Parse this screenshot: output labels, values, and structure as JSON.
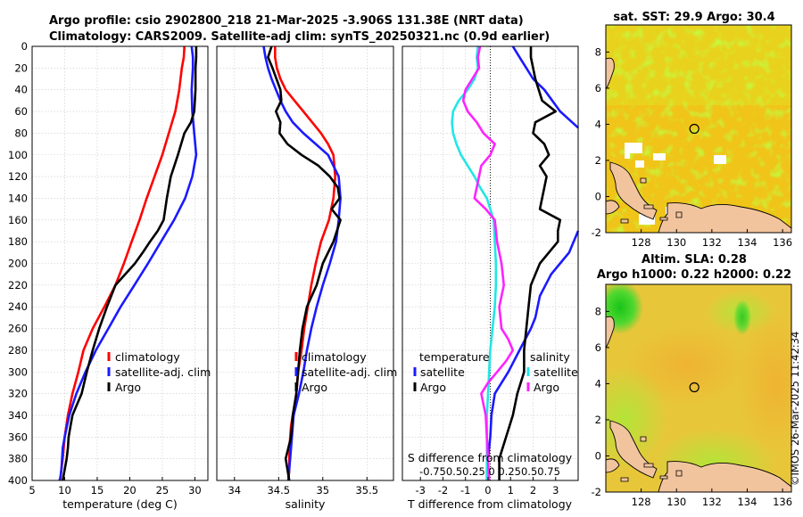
{
  "header": {
    "line1": "Argo profile: csio 2902800_218 21-Mar-2025 -3.906S 131.38E (NRT data)",
    "line2": "Climatology: CARS2009. Satellite-adj clim: synTS_20250321.nc (0.9d earlier)"
  },
  "watermark": "©IMOS 26-Mar-2025 11:42:34",
  "colors": {
    "climatology": "#ff0000",
    "satellite": "#1a1aff",
    "argo": "#000000",
    "s_satellite": "#22e6e6",
    "s_argo": "#ff22ff",
    "land": "#f2c49e",
    "grid": "#c8c8c8"
  },
  "chart_data": [
    {
      "id": "temperature",
      "type": "line",
      "xlabel": "temperature (deg C)",
      "ylabel": "",
      "xlim": [
        5,
        32
      ],
      "ylim": [
        400,
        0
      ],
      "xticks": [
        5,
        10,
        15,
        20,
        25,
        30
      ],
      "yticks": [
        0,
        20,
        40,
        60,
        80,
        100,
        120,
        140,
        160,
        180,
        200,
        220,
        240,
        260,
        280,
        300,
        320,
        340,
        360,
        380,
        400
      ],
      "legend": [
        "climatology",
        "satellite-adj. clim",
        "Argo"
      ],
      "legend_position": "lower-right",
      "series": [
        {
          "name": "climatology",
          "color": "climatology",
          "x": [
            28.4,
            28.3,
            28.0,
            27.6,
            27.0,
            26.0,
            25.0,
            23.8,
            22.6,
            21.5,
            20.3,
            19.1,
            17.8,
            16.1,
            14.3,
            12.9,
            12.1,
            11.2,
            10.5,
            10.0,
            9.7,
            9.5,
            9.3
          ],
          "y": [
            0,
            10,
            20,
            40,
            60,
            80,
            100,
            120,
            140,
            160,
            180,
            200,
            220,
            240,
            260,
            280,
            300,
            320,
            340,
            360,
            380,
            390,
            400
          ]
        },
        {
          "name": "satellite-adj. clim",
          "color": "satellite",
          "x": [
            29.5,
            29.7,
            29.7,
            29.6,
            29.5,
            29.6,
            29.9,
            30.2,
            29.6,
            28.5,
            26.8,
            24.8,
            22.8,
            20.7,
            18.6,
            16.7,
            14.8,
            13.2,
            11.8,
            10.7,
            10.0,
            9.7,
            9.6,
            9.5,
            9.4,
            9.3,
            9.2
          ],
          "y": [
            0,
            10,
            20,
            30,
            40,
            60,
            80,
            100,
            120,
            140,
            160,
            180,
            200,
            220,
            240,
            260,
            280,
            300,
            320,
            340,
            360,
            370,
            380,
            390,
            395,
            398,
            400
          ]
        },
        {
          "name": "Argo",
          "color": "argo",
          "x": [
            30.2,
            30.2,
            30.1,
            30.1,
            29.9,
            29.4,
            28.4,
            27.4,
            26.3,
            25.7,
            25.2,
            24.3,
            23.1,
            22.0,
            20.8,
            19.3,
            17.8,
            16.5,
            15.3,
            14.3,
            13.4,
            12.6,
            11.9,
            11.2,
            10.9,
            10.6,
            10.5,
            10.3,
            10.0,
            9.7
          ],
          "y": [
            0,
            10,
            20,
            40,
            60,
            70,
            80,
            100,
            120,
            140,
            160,
            170,
            180,
            190,
            200,
            210,
            220,
            240,
            260,
            280,
            300,
            320,
            330,
            340,
            350,
            360,
            370,
            380,
            390,
            400
          ]
        }
      ]
    },
    {
      "id": "salinity",
      "type": "line",
      "xlabel": "salinity",
      "xlim": [
        33.8,
        35.8
      ],
      "ylim": [
        400,
        0
      ],
      "xticks": [
        34,
        34.5,
        35,
        35.5
      ],
      "legend": [
        "climatology",
        "satellite-adj. clim",
        "Argo"
      ],
      "legend_position": "lower-right",
      "series": [
        {
          "name": "climatology",
          "color": "climatology",
          "x": [
            34.46,
            34.46,
            34.48,
            34.52,
            34.58,
            34.68,
            34.78,
            34.88,
            34.98,
            35.06,
            35.12,
            35.14,
            35.12,
            35.07,
            34.98,
            34.92,
            34.87,
            34.83,
            34.79,
            34.76,
            34.72,
            34.7,
            34.69,
            34.66,
            34.64,
            34.63,
            34.62,
            34.62,
            34.61
          ],
          "y": [
            0,
            10,
            20,
            30,
            40,
            50,
            60,
            70,
            80,
            90,
            100,
            120,
            140,
            160,
            180,
            200,
            220,
            240,
            260,
            280,
            300,
            320,
            330,
            340,
            350,
            360,
            380,
            390,
            400
          ]
        },
        {
          "name": "satellite-adj. clim",
          "color": "satellite",
          "x": [
            34.33,
            34.35,
            34.38,
            34.42,
            34.47,
            34.52,
            34.58,
            34.66,
            34.78,
            34.92,
            35.06,
            35.18,
            35.2,
            35.18,
            35.15,
            35.08,
            35.0,
            34.93,
            34.87,
            34.82,
            34.78,
            34.73,
            34.7,
            34.67,
            34.65,
            34.63,
            34.62,
            34.61
          ],
          "y": [
            0,
            10,
            20,
            30,
            40,
            50,
            60,
            70,
            80,
            90,
            100,
            120,
            140,
            160,
            180,
            200,
            220,
            240,
            260,
            280,
            300,
            320,
            330,
            340,
            360,
            380,
            390,
            400
          ]
        },
        {
          "name": "Argo",
          "color": "argo",
          "x": [
            34.42,
            34.38,
            34.43,
            34.52,
            34.53,
            34.47,
            34.52,
            34.51,
            34.6,
            34.76,
            34.95,
            35.08,
            35.17,
            35.19,
            35.1,
            35.2,
            35.12,
            35.0,
            34.93,
            34.82,
            34.77,
            34.74,
            34.72,
            34.7,
            34.66,
            34.64,
            34.58,
            34.6,
            34.62
          ],
          "y": [
            0,
            10,
            20,
            40,
            50,
            60,
            70,
            80,
            90,
            100,
            110,
            120,
            130,
            140,
            150,
            160,
            180,
            200,
            220,
            240,
            260,
            280,
            300,
            320,
            340,
            360,
            380,
            390,
            400
          ]
        }
      ]
    },
    {
      "id": "differences",
      "type": "line",
      "xlabel": "T difference from climatology",
      "xlabel2": "S difference from climatology",
      "xlim": [
        -3.8,
        4.0
      ],
      "ylim": [
        400,
        0
      ],
      "xticks": [
        -3,
        -2,
        -1,
        0,
        1,
        2,
        3
      ],
      "xticks2": [
        -0.75,
        -0.5,
        -0.25,
        0,
        0.25,
        0.5,
        0.75
      ],
      "xticks2_text": "-0.750.50.25 0  0.250.50.75",
      "s_scale": 0.25,
      "legend_left_title": "temperature",
      "legend_left": [
        "satellite",
        "Argo"
      ],
      "legend_right_title": "salinity",
      "legend_right": [
        "satellite",
        "Argo"
      ],
      "legend_position": "lower-center",
      "series": [
        {
          "name": "T satellite - clim",
          "color": "satellite",
          "x": [
            1.1,
            1.4,
            1.7,
            2.0,
            2.5,
            3.2,
            4.0
          ],
          "y": [
            0,
            10,
            20,
            30,
            40,
            60,
            75
          ]
        },
        {
          "name": "T satellite - clim (deep)",
          "color": "satellite",
          "x": [
            4.0,
            3.6,
            3.2,
            2.8,
            2.3,
            2.1,
            1.9,
            1.4,
            0.9,
            0.3,
            0.15,
            0.1,
            0.05,
            0.0,
            -0.05,
            -0.05
          ],
          "y": [
            170,
            190,
            200,
            210,
            230,
            250,
            260,
            280,
            300,
            320,
            340,
            360,
            370,
            380,
            390,
            400
          ]
        },
        {
          "name": "T Argo - clim",
          "color": "argo",
          "x": [
            1.9,
            1.9,
            2.0,
            2.1,
            2.4,
            3.0,
            2.1,
            2.0,
            2.5,
            2.7,
            2.3,
            2.6,
            2.5,
            2.4,
            2.3,
            3.2,
            3.1,
            3.1,
            2.3,
            1.9,
            1.8,
            1.7,
            1.6,
            1.6,
            1.3,
            1.1,
            0.8,
            0.5,
            0.5
          ],
          "y": [
            0,
            10,
            20,
            30,
            50,
            60,
            70,
            80,
            90,
            100,
            110,
            120,
            130,
            140,
            150,
            160,
            170,
            180,
            200,
            220,
            240,
            260,
            280,
            300,
            320,
            340,
            360,
            380,
            400
          ]
        },
        {
          "name": "S satellite - clim",
          "color": "s_satellite",
          "x": [
            -0.45,
            -0.5,
            -0.45,
            -0.6,
            -0.9,
            -1.3,
            -1.55,
            -1.6,
            -1.55,
            -1.4,
            -1.2,
            -0.9,
            -0.6,
            -0.35,
            -0.05,
            0.1,
            0.25,
            0.3,
            0.35,
            0.35,
            0.3,
            0.2,
            0.1,
            0.05,
            0.0,
            -0.05,
            -0.05,
            -0.05,
            -0.05
          ],
          "y": [
            0,
            10,
            20,
            30,
            40,
            50,
            60,
            70,
            80,
            90,
            100,
            110,
            120,
            130,
            140,
            150,
            160,
            180,
            200,
            220,
            240,
            260,
            280,
            300,
            320,
            340,
            360,
            380,
            400
          ]
        },
        {
          "name": "S Argo - clim",
          "color": "s_argo",
          "x": [
            -0.35,
            -0.45,
            -0.4,
            -0.7,
            -1.0,
            -1.1,
            -0.9,
            -0.5,
            -0.2,
            0.3,
            0.1,
            -0.3,
            -0.6,
            -0.1,
            0.3,
            0.4,
            0.6,
            0.7,
            0.5,
            0.6,
            0.9,
            1.1,
            0.8,
            0.4,
            0.0,
            -0.3,
            -0.2,
            -0.1,
            0.05
          ],
          "y": [
            0,
            10,
            20,
            30,
            40,
            50,
            60,
            70,
            80,
            90,
            100,
            110,
            140,
            150,
            160,
            180,
            200,
            220,
            240,
            260,
            270,
            280,
            290,
            300,
            310,
            320,
            330,
            340,
            400
          ]
        }
      ]
    },
    {
      "id": "sst_map",
      "type": "heatmap",
      "title": "sat. SST: 29.9 Argo: 30.4",
      "xlim": [
        126,
        136.5
      ],
      "ylim": [
        -2,
        9.5
      ],
      "xticks": [
        128,
        130,
        132,
        134,
        136
      ],
      "yticks": [
        -2,
        0,
        2,
        4,
        6,
        8
      ],
      "marker": {
        "lon": 131.4,
        "lat": 3.8
      }
    },
    {
      "id": "sla_map",
      "type": "heatmap",
      "title": "Altim. SLA: 0.28",
      "subtitle": "Argo h1000: 0.22 h2000: 0.22",
      "xlim": [
        126,
        136.5
      ],
      "ylim": [
        -2,
        9.5
      ],
      "xticks": [
        128,
        130,
        132,
        134,
        136
      ],
      "yticks": [
        -2,
        0,
        2,
        4,
        6,
        8
      ],
      "marker": {
        "lon": 131.4,
        "lat": 3.8
      }
    }
  ]
}
